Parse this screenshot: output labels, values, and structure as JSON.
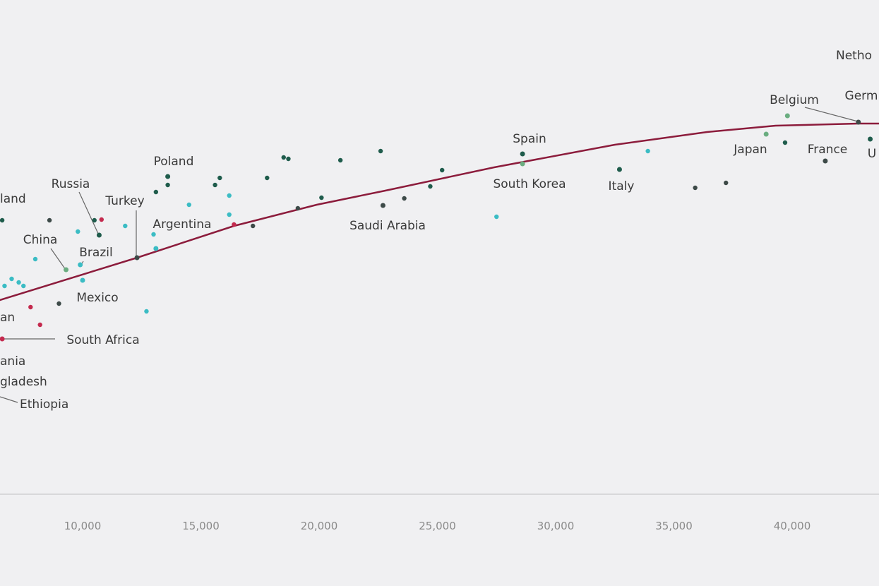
{
  "chart_data": {
    "type": "scatter",
    "title": "",
    "xlabel": "",
    "ylabel": "",
    "x_ticks": [
      "10,000",
      "15,000",
      "20,000",
      "25,000",
      "30,000",
      "35,000",
      "40,000"
    ],
    "x_tick_values": [
      10000,
      15000,
      20000,
      25000,
      30000,
      35000,
      40000
    ],
    "xlim": [
      6500,
      43700
    ],
    "grid": false,
    "colors": {
      "dark_green": "#1f5c4c",
      "teal": "#3bbcc4",
      "red": "#c42a4e",
      "light_green": "#6aad80",
      "dark_gray": "#3d4a48",
      "trend": "#8c1c3c"
    },
    "labeled_points": [
      {
        "label": "Poland",
        "x": 13600,
        "y": 90,
        "group": "dark_green"
      },
      {
        "label": "Russia",
        "x": 10700,
        "y": 73.4,
        "group": "dark_green"
      },
      {
        "label": "Turkey",
        "x": 12300,
        "y": 67,
        "group": "dark_gray"
      },
      {
        "label": "Argentina",
        "x": 13100,
        "y": 69.6,
        "group": "teal"
      },
      {
        "label": "China",
        "x": 9300,
        "y": 63.6,
        "group": "light_green"
      },
      {
        "label": "Brazil",
        "x": 9900,
        "y": 65,
        "group": "teal"
      },
      {
        "label": "Mexico",
        "x": 10000,
        "y": 60.6,
        "group": "teal"
      },
      {
        "label": "South Africa",
        "x": 6600,
        "y": 44,
        "group": "red"
      },
      {
        "label": "Spain",
        "x": 28600,
        "y": 96.4,
        "group": "dark_green"
      },
      {
        "label": "South Korea",
        "x": 28600,
        "y": 93.6,
        "group": "light_green"
      },
      {
        "label": "Italy",
        "x": 32700,
        "y": 92,
        "group": "dark_green"
      },
      {
        "label": "Saudi Arabia",
        "x": 22700,
        "y": 81.8,
        "group": "dark_gray"
      },
      {
        "label": "Japan",
        "x": 38900,
        "y": 102,
        "group": "light_green"
      },
      {
        "label": "Belgium",
        "x": 39800,
        "y": 107.2,
        "group": "light_green"
      },
      {
        "label": "Germ",
        "x": 42800,
        "y": 105.4,
        "group": "dark_gray"
      },
      {
        "label": "France",
        "x": 41400,
        "y": 94.4,
        "group": "dark_gray"
      },
      {
        "label": "U",
        "x": 43300,
        "y": 100.6,
        "group": "dark_green"
      }
    ],
    "cropped_labels": [
      "Netho",
      "land",
      "an",
      "ania",
      "gladesh",
      "Ethiopia"
    ],
    "points": [
      {
        "x": 6600,
        "y": 77.6,
        "group": "dark_green"
      },
      {
        "x": 8600,
        "y": 77.6,
        "group": "dark_gray"
      },
      {
        "x": 10500,
        "y": 77.6,
        "group": "dark_green"
      },
      {
        "x": 10800,
        "y": 77.8,
        "group": "red"
      },
      {
        "x": 9800,
        "y": 74.4,
        "group": "teal"
      },
      {
        "x": 11800,
        "y": 76,
        "group": "teal"
      },
      {
        "x": 8000,
        "y": 66.6,
        "group": "teal"
      },
      {
        "x": 7000,
        "y": 61,
        "group": "teal"
      },
      {
        "x": 7300,
        "y": 60,
        "group": "teal"
      },
      {
        "x": 7500,
        "y": 59,
        "group": "teal"
      },
      {
        "x": 6700,
        "y": 59,
        "group": "teal"
      },
      {
        "x": 7800,
        "y": 53,
        "group": "red"
      },
      {
        "x": 8200,
        "y": 48,
        "group": "red"
      },
      {
        "x": 9000,
        "y": 54,
        "group": "dark_gray"
      },
      {
        "x": 12700,
        "y": 51.8,
        "group": "teal"
      },
      {
        "x": 13100,
        "y": 85.6,
        "group": "dark_green"
      },
      {
        "x": 13600,
        "y": 87.6,
        "group": "dark_green"
      },
      {
        "x": 14500,
        "y": 82,
        "group": "teal"
      },
      {
        "x": 15600,
        "y": 87.6,
        "group": "dark_green"
      },
      {
        "x": 15800,
        "y": 89.6,
        "group": "dark_green"
      },
      {
        "x": 16200,
        "y": 84.6,
        "group": "teal"
      },
      {
        "x": 16200,
        "y": 79.2,
        "group": "teal"
      },
      {
        "x": 16400,
        "y": 76.4,
        "group": "red"
      },
      {
        "x": 17200,
        "y": 76,
        "group": "dark_gray"
      },
      {
        "x": 17800,
        "y": 89.6,
        "group": "dark_green"
      },
      {
        "x": 18500,
        "y": 95.4,
        "group": "dark_green"
      },
      {
        "x": 18700,
        "y": 95,
        "group": "dark_green"
      },
      {
        "x": 19100,
        "y": 81,
        "group": "dark_gray"
      },
      {
        "x": 20100,
        "y": 84,
        "group": "dark_green"
      },
      {
        "x": 20900,
        "y": 94.6,
        "group": "dark_green"
      },
      {
        "x": 22600,
        "y": 97.2,
        "group": "dark_green"
      },
      {
        "x": 23600,
        "y": 83.8,
        "group": "dark_gray"
      },
      {
        "x": 24700,
        "y": 87.2,
        "group": "dark_green"
      },
      {
        "x": 25200,
        "y": 91.8,
        "group": "dark_green"
      },
      {
        "x": 27500,
        "y": 78.6,
        "group": "teal"
      },
      {
        "x": 33900,
        "y": 97.2,
        "group": "teal"
      },
      {
        "x": 35900,
        "y": 86.8,
        "group": "dark_gray"
      },
      {
        "x": 37200,
        "y": 88.2,
        "group": "dark_gray"
      },
      {
        "x": 39700,
        "y": 99.6,
        "group": "dark_green"
      },
      {
        "x": 13000,
        "y": 73.6,
        "group": "teal"
      }
    ],
    "trend_line": [
      {
        "x": 6500,
        "y": 55
      },
      {
        "x": 12300,
        "y": 67
      },
      {
        "x": 16400,
        "y": 76
      },
      {
        "x": 19900,
        "y": 82
      },
      {
        "x": 22800,
        "y": 86
      },
      {
        "x": 27400,
        "y": 92.6
      },
      {
        "x": 32500,
        "y": 99
      },
      {
        "x": 36400,
        "y": 102.6
      },
      {
        "x": 39300,
        "y": 104.4
      },
      {
        "x": 42800,
        "y": 105
      },
      {
        "x": 43700,
        "y": 105
      }
    ]
  }
}
